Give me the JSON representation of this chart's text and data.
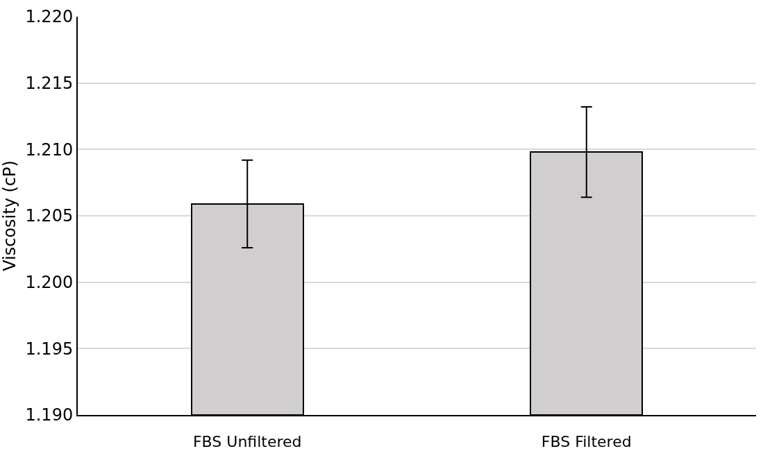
{
  "chart_data": {
    "type": "bar",
    "ylabel": "Viscosity (cP)",
    "categories": [
      "FBS Unfiltered",
      "FBS Filtered"
    ],
    "values": [
      1.2059,
      1.2098
    ],
    "errors": [
      0.0033,
      0.0034
    ],
    "color": "#d0cece",
    "ylim": [
      1.19,
      1.22
    ],
    "yticks": [
      {
        "value": 1.19,
        "label": "1.190"
      },
      {
        "value": 1.195,
        "label": "1.195"
      },
      {
        "value": 1.2,
        "label": "1.200"
      },
      {
        "value": 1.205,
        "label": "1.205"
      },
      {
        "value": 1.21,
        "label": "1.210"
      },
      {
        "value": 1.215,
        "label": "1.215"
      },
      {
        "value": 1.22,
        "label": "1.220"
      }
    ],
    "grid": "y"
  }
}
